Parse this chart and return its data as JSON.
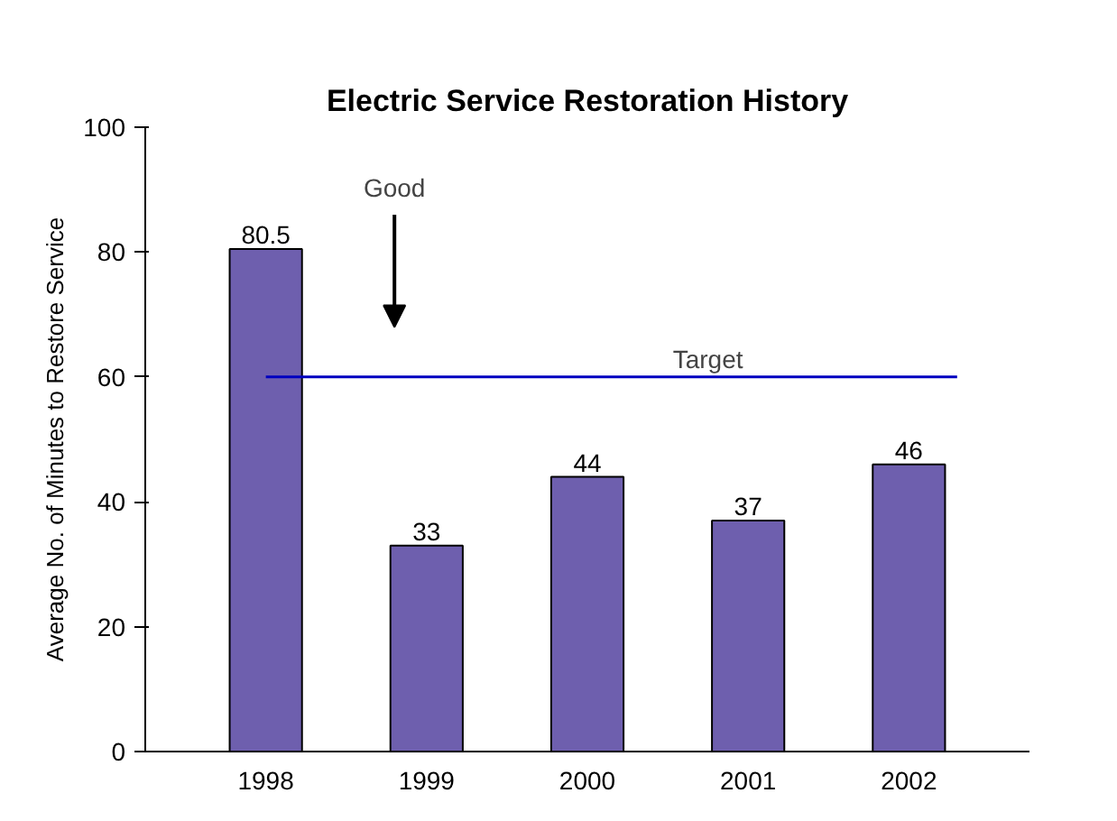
{
  "chart_data": {
    "type": "bar",
    "title": "Electric Service Restoration History",
    "ylabel": "Average No. of Minutes to Restore Service",
    "categories": [
      "1998",
      "1999",
      "2000",
      "2001",
      "2002"
    ],
    "values": [
      80.5,
      33,
      44,
      37,
      46
    ],
    "color": "#6e5fae",
    "data_labels": true,
    "ylim": [
      0,
      100
    ],
    "yticks": [
      0,
      20,
      40,
      60,
      80,
      100
    ],
    "grid": false,
    "ref_lines": [
      {
        "axis": "y",
        "value": 60,
        "label": "Target",
        "color": "#0000c0"
      }
    ],
    "annotations": [
      "Good"
    ]
  }
}
